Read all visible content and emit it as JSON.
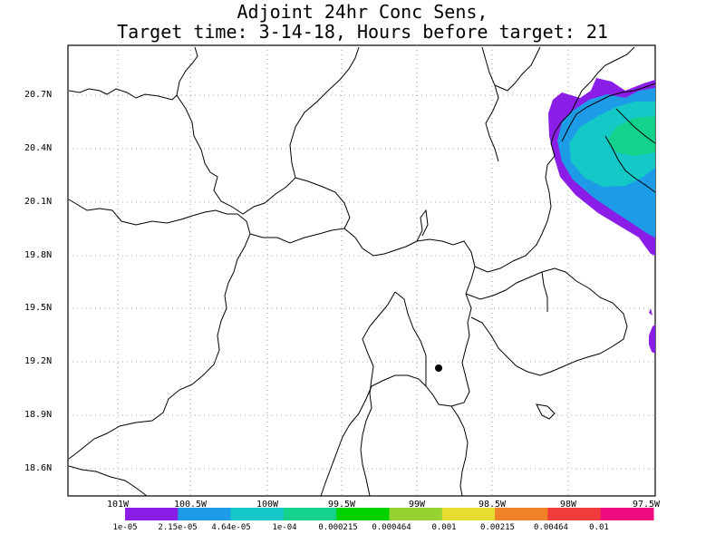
{
  "title": {
    "line1": "Adjoint 24hr Conc Sens,",
    "line2": "Target time: 3-14-18, Hours before target: 21"
  },
  "axes": {
    "y_ticks": [
      "20.7N",
      "20.4N",
      "20.1N",
      "19.8N",
      "19.5N",
      "19.2N",
      "18.9N",
      "18.6N"
    ],
    "x_ticks": [
      "101W",
      "100.5W",
      "100W",
      "99.5W",
      "99W",
      "98.5W",
      "98W",
      "97.5W"
    ]
  },
  "colorbar": {
    "labels": [
      "1e-05",
      "2.15e-05",
      "4.64e-05",
      "1e-04",
      "0.000215",
      "0.000464",
      "0.001",
      "0.00215",
      "0.00464",
      "0.01"
    ],
    "colors": [
      "#8a1ee6",
      "#1e9be6",
      "#14c8c8",
      "#12d28c",
      "#00d200",
      "#96d232",
      "#e6dc32",
      "#f08228",
      "#f03c3c",
      "#f00a82"
    ]
  },
  "marker": {
    "type": "target-point"
  }
}
